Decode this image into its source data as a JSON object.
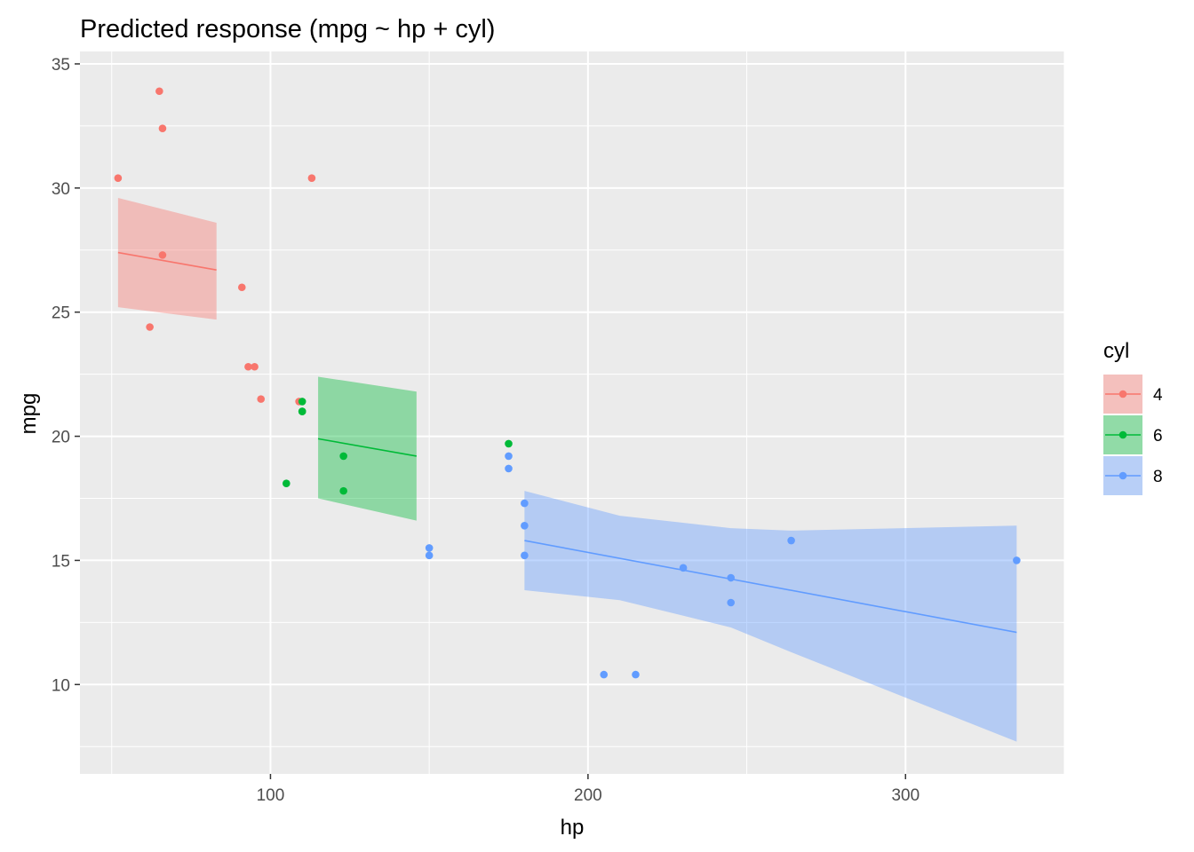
{
  "chart_data": {
    "type": "scatter",
    "title": "Predicted response (mpg ~ hp + cyl)",
    "xlabel": "hp",
    "ylabel": "mpg",
    "xlim": [
      40,
      350
    ],
    "ylim": [
      6.4,
      35.5
    ],
    "x_ticks": [
      100,
      200,
      300
    ],
    "x_tick_labels": [
      "100",
      "200",
      "300"
    ],
    "y_ticks": [
      10,
      15,
      20,
      25,
      30,
      35
    ],
    "y_tick_labels": [
      "10",
      "15",
      "20",
      "25",
      "30",
      "35"
    ],
    "grid": true,
    "legend": {
      "title": "cyl",
      "position": "right"
    },
    "series": [
      {
        "name": "4",
        "color": "#F8766D",
        "points": [
          [
            93,
            22.8
          ],
          [
            62,
            24.4
          ],
          [
            95,
            22.8
          ],
          [
            66,
            32.4
          ],
          [
            52,
            30.4
          ],
          [
            65,
            33.9
          ],
          [
            97,
            21.5
          ],
          [
            66,
            27.3
          ],
          [
            91,
            26.0
          ],
          [
            113,
            30.4
          ],
          [
            109,
            21.4
          ]
        ],
        "fit_line": [
          [
            52,
            27.4
          ],
          [
            83,
            26.7
          ]
        ],
        "band_upper": [
          [
            52,
            29.6
          ],
          [
            83,
            28.6
          ]
        ],
        "band_lower": [
          [
            52,
            25.2
          ],
          [
            83,
            24.7
          ]
        ]
      },
      {
        "name": "6",
        "color": "#00BA38",
        "points": [
          [
            110,
            21.0
          ],
          [
            110,
            21.0
          ],
          [
            110,
            21.4
          ],
          [
            105,
            18.1
          ],
          [
            123,
            19.2
          ],
          [
            123,
            17.8
          ],
          [
            175,
            19.7
          ]
        ],
        "fit_line": [
          [
            115,
            19.9
          ],
          [
            146,
            19.2
          ]
        ],
        "band_upper": [
          [
            115,
            22.4
          ],
          [
            146,
            21.8
          ]
        ],
        "band_lower": [
          [
            115,
            17.5
          ],
          [
            146,
            16.6
          ]
        ]
      },
      {
        "name": "8",
        "color": "#619CFF",
        "points": [
          [
            175,
            18.7
          ],
          [
            245,
            14.3
          ],
          [
            180,
            16.4
          ],
          [
            180,
            17.3
          ],
          [
            180,
            15.2
          ],
          [
            205,
            10.4
          ],
          [
            215,
            10.4
          ],
          [
            230,
            14.7
          ],
          [
            150,
            15.5
          ],
          [
            150,
            15.2
          ],
          [
            245,
            13.3
          ],
          [
            175,
            19.2
          ],
          [
            264,
            15.8
          ],
          [
            335,
            15.0
          ]
        ],
        "fit_line": [
          [
            180,
            15.8
          ],
          [
            335,
            12.1
          ]
        ],
        "band_upper": [
          [
            180,
            17.8
          ],
          [
            210,
            16.8
          ],
          [
            245,
            16.3
          ],
          [
            264,
            16.2
          ],
          [
            335,
            16.4
          ]
        ],
        "band_lower": [
          [
            180,
            13.8
          ],
          [
            210,
            13.4
          ],
          [
            245,
            12.3
          ],
          [
            264,
            11.3
          ],
          [
            335,
            7.7
          ]
        ]
      }
    ]
  }
}
